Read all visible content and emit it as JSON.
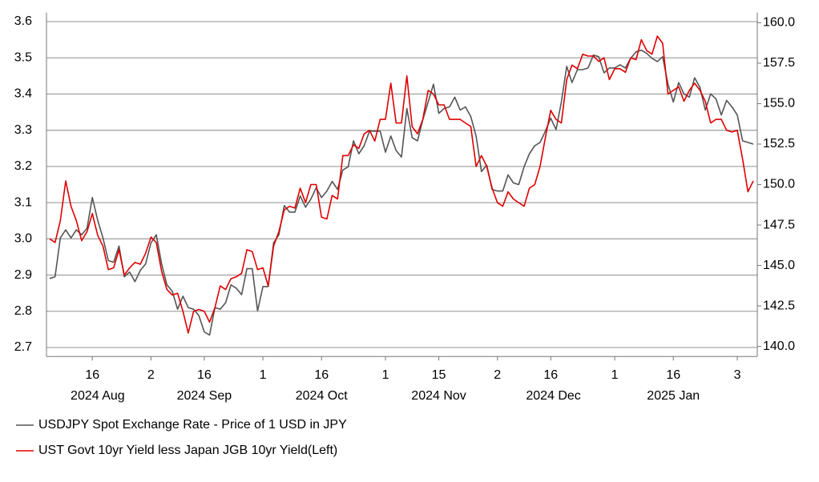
{
  "chart_data": {
    "type": "line",
    "categories": [
      "2024-08-06",
      "2024-08-07",
      "2024-08-08",
      "2024-08-09",
      "2024-08-12",
      "2024-08-13",
      "2024-08-14",
      "2024-08-15",
      "2024-08-16",
      "2024-08-19",
      "2024-08-20",
      "2024-08-21",
      "2024-08-22",
      "2024-08-23",
      "2024-08-26",
      "2024-08-27",
      "2024-08-28",
      "2024-08-29",
      "2024-08-30",
      "2024-09-02",
      "2024-09-03",
      "2024-09-04",
      "2024-09-05",
      "2024-09-06",
      "2024-09-09",
      "2024-09-10",
      "2024-09-11",
      "2024-09-12",
      "2024-09-13",
      "2024-09-16",
      "2024-09-17",
      "2024-09-18",
      "2024-09-19",
      "2024-09-20",
      "2024-09-23",
      "2024-09-24",
      "2024-09-25",
      "2024-09-26",
      "2024-09-27",
      "2024-09-30",
      "2024-10-01",
      "2024-10-02",
      "2024-10-03",
      "2024-10-04",
      "2024-10-07",
      "2024-10-08",
      "2024-10-09",
      "2024-10-10",
      "2024-10-11",
      "2024-10-14",
      "2024-10-15",
      "2024-10-16",
      "2024-10-17",
      "2024-10-18",
      "2024-10-21",
      "2024-10-22",
      "2024-10-23",
      "2024-10-24",
      "2024-10-25",
      "2024-10-28",
      "2024-10-29",
      "2024-10-30",
      "2024-10-31",
      "2024-11-01",
      "2024-11-04",
      "2024-11-05",
      "2024-11-06",
      "2024-11-07",
      "2024-11-08",
      "2024-11-11",
      "2024-11-12",
      "2024-11-13",
      "2024-11-14",
      "2024-11-15",
      "2024-11-18",
      "2024-11-19",
      "2024-11-20",
      "2024-11-21",
      "2024-11-22",
      "2024-11-25",
      "2024-11-26",
      "2024-11-27",
      "2024-11-28",
      "2024-11-29",
      "2024-12-02",
      "2024-12-03",
      "2024-12-04",
      "2024-12-05",
      "2024-12-06",
      "2024-12-09",
      "2024-12-10",
      "2024-12-11",
      "2024-12-12",
      "2024-12-13",
      "2024-12-16",
      "2024-12-17",
      "2024-12-18",
      "2024-12-19",
      "2024-12-20",
      "2024-12-23",
      "2024-12-24",
      "2024-12-25",
      "2024-12-26",
      "2024-12-27",
      "2024-12-30",
      "2024-12-31",
      "2025-01-01",
      "2025-01-02",
      "2025-01-03",
      "2025-01-06",
      "2025-01-07",
      "2025-01-08",
      "2025-01-09",
      "2025-01-10",
      "2025-01-13",
      "2025-01-14",
      "2025-01-15",
      "2025-01-16",
      "2025-01-17",
      "2025-01-20",
      "2025-01-21",
      "2025-01-22",
      "2025-01-23",
      "2025-01-24",
      "2025-01-27",
      "2025-01-28",
      "2025-01-29",
      "2025-01-30",
      "2025-01-31",
      "2025-02-03",
      "2025-02-04",
      "2025-02-05",
      "2025-02-06"
    ],
    "xticks": [
      {
        "value": "2024-08-16",
        "label": "16"
      },
      {
        "value": "2024-09-02",
        "label": "2"
      },
      {
        "value": "2024-09-16",
        "label": "16"
      },
      {
        "value": "2024-10-01",
        "label": "1"
      },
      {
        "value": "2024-10-16",
        "label": "16"
      },
      {
        "value": "2024-11-01",
        "label": "1"
      },
      {
        "value": "2024-11-15",
        "label": "15"
      },
      {
        "value": "2024-12-02",
        "label": "2"
      },
      {
        "value": "2024-12-16",
        "label": "16"
      },
      {
        "value": "2025-01-01",
        "label": "1"
      },
      {
        "value": "2025-01-16",
        "label": "16"
      },
      {
        "value": "2025-02-03",
        "label": "3"
      }
    ],
    "month_labels": [
      {
        "value": "2024-08",
        "label": "2024 Aug"
      },
      {
        "value": "2024-09",
        "label": "2024 Sep"
      },
      {
        "value": "2024-10",
        "label": "2024 Oct"
      },
      {
        "value": "2024-11",
        "label": "2024 Nov"
      },
      {
        "value": "2024-12",
        "label": "2024 Dec"
      },
      {
        "value": "2025-01",
        "label": "2025 Jan"
      }
    ],
    "ylim": [
      2.675,
      3.625
    ],
    "yticks": [
      2.7,
      2.8,
      2.9,
      {
        "value": 3.0,
        "label": "3.0"
      },
      3.1,
      3.2,
      3.3,
      3.4,
      3.5,
      3.6
    ],
    "y2lim": [
      139.375,
      160.625
    ],
    "y2ticks": [
      {
        "value": 140,
        "label": "140.0"
      },
      142.5,
      {
        "value": 145,
        "label": "145.0"
      },
      147.5,
      {
        "value": 150,
        "label": "150.0"
      },
      152.5,
      {
        "value": 155,
        "label": "155.0"
      },
      157.5,
      {
        "value": 160,
        "label": "160.0"
      }
    ],
    "grid": true,
    "series": [
      {
        "name": "USDJPY Spot Exchange Rate - Price of 1 USD in JPY",
        "color": "#555555",
        "axis": "y2",
        "values": [
          144.2,
          144.3,
          146.7,
          147.2,
          146.7,
          147.2,
          146.9,
          147.3,
          149.2,
          147.8,
          146.7,
          145.3,
          145.2,
          146.2,
          144.3,
          144.6,
          144.0,
          144.7,
          145.1,
          146.4,
          146.9,
          145.1,
          143.8,
          143.4,
          142.3,
          143.1,
          142.4,
          142.3,
          141.9,
          140.9,
          140.7,
          142.4,
          142.3,
          142.7,
          143.8,
          143.6,
          143.2,
          144.8,
          144.8,
          142.2,
          143.7,
          143.7,
          146.4,
          146.9,
          148.7,
          148.3,
          148.3,
          149.3,
          148.6,
          149.1,
          149.8,
          149.2,
          149.6,
          150.2,
          149.7,
          150.9,
          151.1,
          152.7,
          151.9,
          152.4,
          153.3,
          153.3,
          153.3,
          152.0,
          153.0,
          152.1,
          151.7,
          154.7,
          152.9,
          152.7,
          154.0,
          155.1,
          156.2,
          154.4,
          154.7,
          154.8,
          155.4,
          154.6,
          154.8,
          154.2,
          153.0,
          150.8,
          151.2,
          149.7,
          149.6,
          149.6,
          150.6,
          150.1,
          150.0,
          151.1,
          151.9,
          152.4,
          152.6,
          153.3,
          154.1,
          153.4,
          155.1,
          157.3,
          156.3,
          157.1,
          157.1,
          157.2,
          158.0,
          157.9,
          156.9,
          157.2,
          157.2,
          157.4,
          157.2,
          157.8,
          158.2,
          158.3,
          158.1,
          157.8,
          157.6,
          157.9,
          156.2,
          155.1,
          156.3,
          155.6,
          155.4,
          156.6,
          156.0,
          154.6,
          155.6,
          155.3,
          154.3,
          155.2,
          154.8,
          154.3,
          152.7,
          152.6,
          152.5
        ]
      },
      {
        "name": "UST Govt 10yr Yield less Japan JGB 10yr Yield(Left)",
        "color": "#e00000",
        "values": [
          3.0,
          2.99,
          3.05,
          3.16,
          3.09,
          3.05,
          2.995,
          3.02,
          3.07,
          3.01,
          2.98,
          2.915,
          2.92,
          2.97,
          2.9,
          2.92,
          2.935,
          2.93,
          2.96,
          3.005,
          2.99,
          2.91,
          2.86,
          2.845,
          2.85,
          2.8,
          2.74,
          2.8,
          2.805,
          2.8,
          2.77,
          2.81,
          2.87,
          2.86,
          2.89,
          2.895,
          2.905,
          2.97,
          2.965,
          2.915,
          2.92,
          2.87,
          2.98,
          3.02,
          3.08,
          3.09,
          3.085,
          3.14,
          3.1,
          3.15,
          3.15,
          3.06,
          3.055,
          3.12,
          3.11,
          3.23,
          3.23,
          3.26,
          3.25,
          3.29,
          3.3,
          3.27,
          3.33,
          3.33,
          3.43,
          3.32,
          3.32,
          3.45,
          3.31,
          3.29,
          3.33,
          3.41,
          3.4,
          3.37,
          3.37,
          3.33,
          3.33,
          3.33,
          3.32,
          3.31,
          3.2,
          3.23,
          3.2,
          3.14,
          3.1,
          3.09,
          3.13,
          3.11,
          3.1,
          3.09,
          3.14,
          3.15,
          3.2,
          3.28,
          3.355,
          3.33,
          3.32,
          3.44,
          3.48,
          3.47,
          3.51,
          3.505,
          3.505,
          3.49,
          3.5,
          3.44,
          3.47,
          3.47,
          3.46,
          3.5,
          3.495,
          3.55,
          3.52,
          3.51,
          3.56,
          3.54,
          3.4,
          3.41,
          3.42,
          3.38,
          3.41,
          3.43,
          3.41,
          3.38,
          3.32,
          3.33,
          3.33,
          3.3,
          3.295,
          3.3,
          3.22,
          3.13,
          3.16
        ]
      }
    ]
  }
}
